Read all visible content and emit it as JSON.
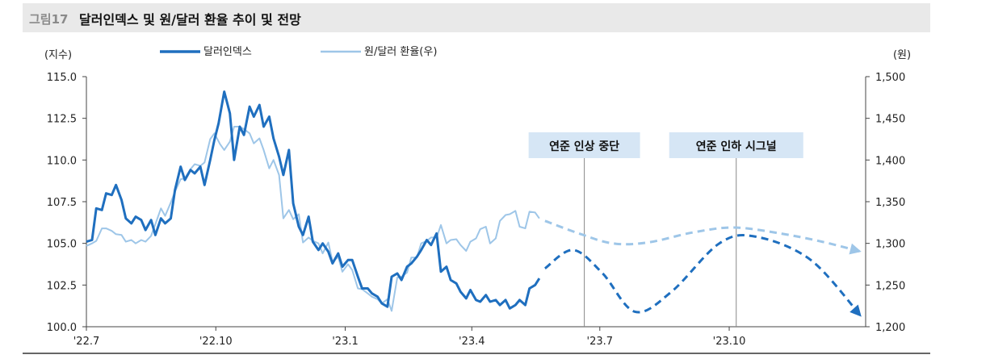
{
  "figure": {
    "number": "그림17",
    "title": "달러인덱스 및 원/달러 환율 추이 및 전망"
  },
  "colors": {
    "dollar_index": "#1f6fbf",
    "krw_usd": "#9ec6e8",
    "annotation_box": "#d6e6f5",
    "vline": "#888888"
  },
  "chart_data": {
    "type": "line",
    "x_ticks": [
      "'22.7",
      "'22.10",
      "'23.1",
      "'23.4",
      "'23.7",
      "'23.10"
    ],
    "y_left": {
      "unit": "(지수)",
      "min": 100,
      "max": 115,
      "ticks": [
        "100.0",
        "102.5",
        "105.0",
        "107.5",
        "110.0",
        "112.5",
        "115.0"
      ]
    },
    "y_right": {
      "unit": "(원)",
      "min": 1200,
      "max": 1500,
      "ticks": [
        "1,200",
        "1,250",
        "1,300",
        "1,350",
        "1,400",
        "1,450",
        "1,500"
      ]
    },
    "legend": [
      "달러인덱스",
      "원/달러 환율(우)"
    ],
    "series": [
      {
        "name": "달러인덱스",
        "axis": "left",
        "points": [
          [
            "2022-07-01",
            105.1
          ],
          [
            "2022-07-05",
            105.2
          ],
          [
            "2022-07-08",
            107.1
          ],
          [
            "2022-07-12",
            107.0
          ],
          [
            "2022-07-15",
            108.0
          ],
          [
            "2022-07-19",
            107.9
          ],
          [
            "2022-07-22",
            108.5
          ],
          [
            "2022-07-26",
            107.6
          ],
          [
            "2022-07-29",
            106.5
          ],
          [
            "2022-08-02",
            106.2
          ],
          [
            "2022-08-05",
            106.6
          ],
          [
            "2022-08-09",
            106.4
          ],
          [
            "2022-08-12",
            105.8
          ],
          [
            "2022-08-16",
            106.4
          ],
          [
            "2022-08-19",
            105.5
          ],
          [
            "2022-08-23",
            106.5
          ],
          [
            "2022-08-26",
            106.2
          ],
          [
            "2022-08-30",
            106.5
          ],
          [
            "2022-09-02",
            108.2
          ],
          [
            "2022-09-06",
            109.6
          ],
          [
            "2022-09-09",
            108.8
          ],
          [
            "2022-09-13",
            109.4
          ],
          [
            "2022-09-16",
            109.2
          ],
          [
            "2022-09-20",
            109.6
          ],
          [
            "2022-09-23",
            108.5
          ],
          [
            "2022-09-27",
            110.0
          ],
          [
            "2022-09-30",
            111.2
          ],
          [
            "2022-10-03",
            112.2
          ],
          [
            "2022-10-07",
            114.1
          ],
          [
            "2022-10-11",
            112.8
          ],
          [
            "2022-10-14",
            110.0
          ],
          [
            "2022-10-18",
            112.0
          ],
          [
            "2022-10-21",
            111.5
          ],
          [
            "2022-10-25",
            113.2
          ],
          [
            "2022-10-28",
            112.6
          ],
          [
            "2022-11-01",
            113.3
          ],
          [
            "2022-11-04",
            112.0
          ],
          [
            "2022-11-08",
            112.6
          ],
          [
            "2022-11-11",
            111.3
          ],
          [
            "2022-11-15",
            110.2
          ],
          [
            "2022-11-18",
            109.1
          ],
          [
            "2022-11-22",
            110.6
          ],
          [
            "2022-11-25",
            107.4
          ],
          [
            "2022-11-29",
            106.0
          ],
          [
            "2022-12-02",
            105.5
          ],
          [
            "2022-12-06",
            106.6
          ],
          [
            "2022-12-09",
            105.1
          ],
          [
            "2022-12-13",
            104.6
          ],
          [
            "2022-12-16",
            105.0
          ],
          [
            "2022-12-20",
            104.5
          ],
          [
            "2022-12-23",
            103.8
          ],
          [
            "2022-12-27",
            104.4
          ],
          [
            "2022-12-30",
            103.6
          ],
          [
            "2023-01-03",
            104.0
          ],
          [
            "2023-01-06",
            104.0
          ],
          [
            "2023-01-10",
            103.0
          ],
          [
            "2023-01-13",
            102.3
          ],
          [
            "2023-01-17",
            102.3
          ],
          [
            "2023-01-20",
            102.0
          ],
          [
            "2023-01-24",
            101.8
          ],
          [
            "2023-01-27",
            101.4
          ],
          [
            "2023-01-31",
            101.2
          ],
          [
            "2023-02-03",
            103.0
          ],
          [
            "2023-02-07",
            103.2
          ],
          [
            "2023-02-10",
            102.8
          ],
          [
            "2023-02-14",
            103.6
          ],
          [
            "2023-02-17",
            103.8
          ],
          [
            "2023-02-21",
            104.2
          ],
          [
            "2023-02-24",
            104.6
          ],
          [
            "2023-02-28",
            105.2
          ],
          [
            "2023-03-03",
            104.9
          ],
          [
            "2023-03-07",
            105.6
          ],
          [
            "2023-03-10",
            103.3
          ],
          [
            "2023-03-14",
            103.6
          ],
          [
            "2023-03-17",
            102.8
          ],
          [
            "2023-03-21",
            102.6
          ],
          [
            "2023-03-24",
            102.1
          ],
          [
            "2023-03-28",
            101.7
          ],
          [
            "2023-03-31",
            102.2
          ],
          [
            "2023-04-04",
            101.6
          ],
          [
            "2023-04-07",
            101.5
          ],
          [
            "2023-04-11",
            101.9
          ],
          [
            "2023-04-14",
            101.5
          ],
          [
            "2023-04-18",
            101.6
          ],
          [
            "2023-04-21",
            101.3
          ],
          [
            "2023-04-25",
            101.6
          ],
          [
            "2023-04-28",
            101.1
          ],
          [
            "2023-05-02",
            101.3
          ],
          [
            "2023-05-05",
            101.6
          ],
          [
            "2023-05-09",
            101.3
          ],
          [
            "2023-05-12",
            102.3
          ],
          [
            "2023-05-16",
            102.5
          ],
          [
            "2023-05-19",
            102.9
          ]
        ]
      },
      {
        "name": "원/달러 환율(우)",
        "axis": "right",
        "points": [
          [
            "2022-07-01",
            1297
          ],
          [
            "2022-07-05",
            1300
          ],
          [
            "2022-07-08",
            1303
          ],
          [
            "2022-07-12",
            1318
          ],
          [
            "2022-07-15",
            1318
          ],
          [
            "2022-07-19",
            1315
          ],
          [
            "2022-07-22",
            1311
          ],
          [
            "2022-07-26",
            1310
          ],
          [
            "2022-07-29",
            1302
          ],
          [
            "2022-08-02",
            1304
          ],
          [
            "2022-08-05",
            1300
          ],
          [
            "2022-08-09",
            1304
          ],
          [
            "2022-08-12",
            1302
          ],
          [
            "2022-08-16",
            1309
          ],
          [
            "2022-08-19",
            1323
          ],
          [
            "2022-08-23",
            1342
          ],
          [
            "2022-08-26",
            1333
          ],
          [
            "2022-08-30",
            1349
          ],
          [
            "2022-09-02",
            1362
          ],
          [
            "2022-09-06",
            1377
          ],
          [
            "2022-09-09",
            1378
          ],
          [
            "2022-09-13",
            1389
          ],
          [
            "2022-09-16",
            1395
          ],
          [
            "2022-09-20",
            1393
          ],
          [
            "2022-09-23",
            1397
          ],
          [
            "2022-09-27",
            1425
          ],
          [
            "2022-09-30",
            1432
          ],
          [
            "2022-10-04",
            1419
          ],
          [
            "2022-10-07",
            1412
          ],
          [
            "2022-10-11",
            1422
          ],
          [
            "2022-10-14",
            1440
          ],
          [
            "2022-10-18",
            1440
          ],
          [
            "2022-10-21",
            1437
          ],
          [
            "2022-10-25",
            1432
          ],
          [
            "2022-10-28",
            1420
          ],
          [
            "2022-11-01",
            1426
          ],
          [
            "2022-11-04",
            1412
          ],
          [
            "2022-11-08",
            1390
          ],
          [
            "2022-11-11",
            1400
          ],
          [
            "2022-11-15",
            1382
          ],
          [
            "2022-11-18",
            1330
          ],
          [
            "2022-11-22",
            1340
          ],
          [
            "2022-11-25",
            1329
          ],
          [
            "2022-11-29",
            1335
          ],
          [
            "2022-12-02",
            1301
          ],
          [
            "2022-12-06",
            1307
          ],
          [
            "2022-12-09",
            1303
          ],
          [
            "2022-12-13",
            1300
          ],
          [
            "2022-12-16",
            1288
          ],
          [
            "2022-12-20",
            1301
          ],
          [
            "2022-12-23",
            1278
          ],
          [
            "2022-12-27",
            1284
          ],
          [
            "2022-12-30",
            1266
          ],
          [
            "2023-01-03",
            1275
          ],
          [
            "2023-01-06",
            1268
          ],
          [
            "2023-01-10",
            1246
          ],
          [
            "2023-01-13",
            1245
          ],
          [
            "2023-01-17",
            1240
          ],
          [
            "2023-01-20",
            1236
          ],
          [
            "2023-01-24",
            1233
          ],
          [
            "2023-01-27",
            1228
          ],
          [
            "2023-01-31",
            1233
          ],
          [
            "2023-02-03",
            1219
          ],
          [
            "2023-02-07",
            1259
          ],
          [
            "2023-02-10",
            1260
          ],
          [
            "2023-02-14",
            1265
          ],
          [
            "2023-02-17",
            1283
          ],
          [
            "2023-02-21",
            1283
          ],
          [
            "2023-02-24",
            1300
          ],
          [
            "2023-02-28",
            1303
          ],
          [
            "2023-03-03",
            1307
          ],
          [
            "2023-03-07",
            1307
          ],
          [
            "2023-03-10",
            1322
          ],
          [
            "2023-03-14",
            1300
          ],
          [
            "2023-03-17",
            1304
          ],
          [
            "2023-03-21",
            1305
          ],
          [
            "2023-03-24",
            1298
          ],
          [
            "2023-03-28",
            1291
          ],
          [
            "2023-03-31",
            1302
          ],
          [
            "2023-04-04",
            1306
          ],
          [
            "2023-04-07",
            1317
          ],
          [
            "2023-04-11",
            1320
          ],
          [
            "2023-04-14",
            1300
          ],
          [
            "2023-04-18",
            1306
          ],
          [
            "2023-04-21",
            1327
          ],
          [
            "2023-04-25",
            1334
          ],
          [
            "2023-04-28",
            1335
          ],
          [
            "2023-05-02",
            1339
          ],
          [
            "2023-05-05",
            1320
          ],
          [
            "2023-05-09",
            1318
          ],
          [
            "2023-05-12",
            1338
          ],
          [
            "2023-05-16",
            1337
          ],
          [
            "2023-05-19",
            1330
          ]
        ]
      }
    ],
    "forecast": [
      {
        "series": "원/달러 환율(우)",
        "axis": "right",
        "points": [
          [
            "2023-05-23",
            1327
          ],
          [
            "2023-06-16",
            1312
          ],
          [
            "2023-07-10",
            1300
          ],
          [
            "2023-08-04",
            1301
          ],
          [
            "2023-09-05",
            1313
          ],
          [
            "2023-10-04",
            1319
          ],
          [
            "2023-11-06",
            1312
          ],
          [
            "2023-12-06",
            1302
          ],
          [
            "2024-01-03",
            1290
          ]
        ]
      },
      {
        "series": "달러인덱스",
        "axis": "left",
        "points": [
          [
            "2023-05-23",
            103.5
          ],
          [
            "2023-06-12",
            104.6
          ],
          [
            "2023-07-03",
            103.2
          ],
          [
            "2023-07-26",
            100.9
          ],
          [
            "2023-08-21",
            102.1
          ],
          [
            "2023-09-24",
            105.0
          ],
          [
            "2023-10-20",
            105.4
          ],
          [
            "2023-11-28",
            104.0
          ],
          [
            "2024-01-03",
            100.6
          ]
        ]
      }
    ],
    "annotations": [
      {
        "text": "연준 인상 중단",
        "date": "2023-06-20"
      },
      {
        "text": "연준 인하 시그널",
        "date": "2023-10-06"
      }
    ]
  }
}
